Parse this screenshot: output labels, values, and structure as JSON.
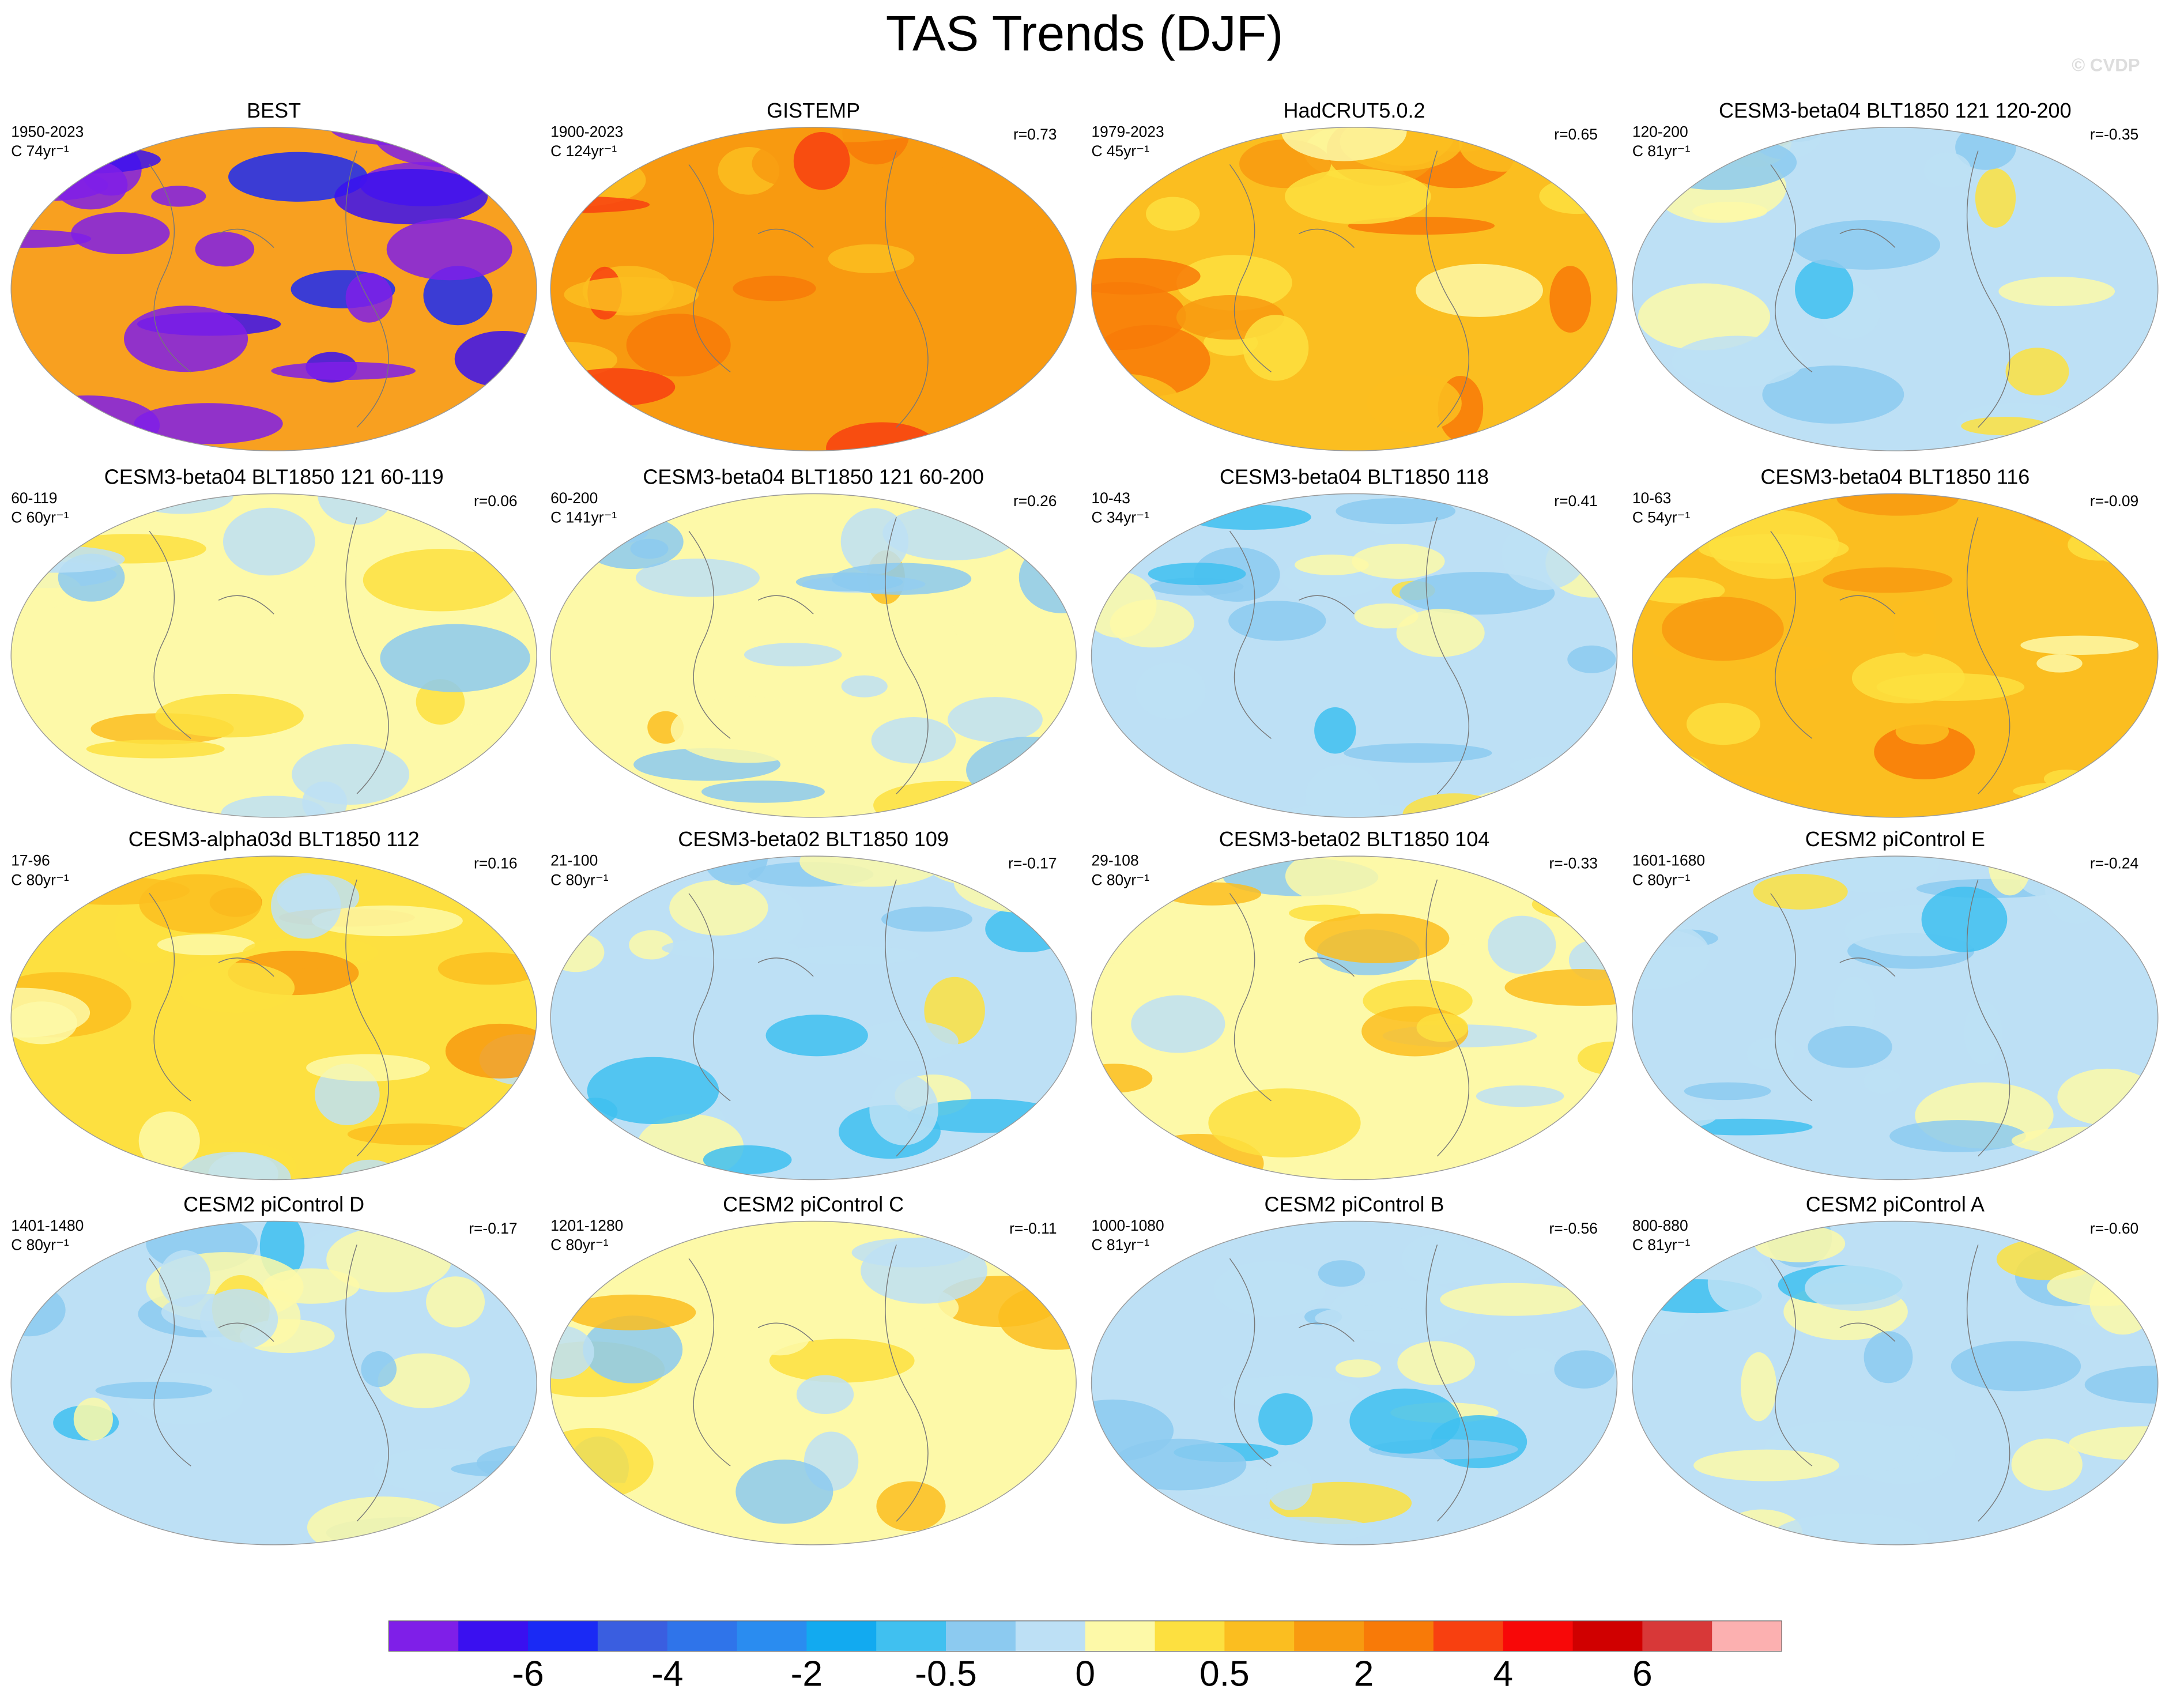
{
  "title": "TAS Trends (DJF)",
  "watermark": "© CVDP",
  "panels": [
    {
      "title": "BEST",
      "period": "1950-2023",
      "length": "C 74yr⁻¹",
      "color": "#f8a020"
    },
    {
      "title": "GISTEMP",
      "period": "1900-2023",
      "length": "C 124yr⁻¹",
      "r": "r=0.73",
      "color": "#f89a10"
    },
    {
      "title": "HadCRUT5.0.2",
      "period": "1979-2023",
      "length": "C 45yr⁻¹",
      "r": "r=0.65",
      "color": "#fbbe20"
    },
    {
      "title": "CESM3-beta04 BLT1850 121 120-200",
      "period": "120-200",
      "length": "C 81yr⁻¹",
      "r": "r=-0.35",
      "color": "#bde0f5"
    },
    {
      "title": "CESM3-beta04 BLT1850 121 60-119",
      "period": "60-119",
      "length": "C 60yr⁻¹",
      "r": "r=0.06",
      "color": "#fdf9a8"
    },
    {
      "title": "CESM3-beta04 BLT1850 121 60-200",
      "period": "60-200",
      "length": "C 141yr⁻¹",
      "r": "r=0.26",
      "color": "#fdf9a8"
    },
    {
      "title": "CESM3-beta04 BLT1850 118",
      "period": "10-43",
      "length": "C 34yr⁻¹",
      "r": "r=0.41",
      "color": "#bde0f5"
    },
    {
      "title": "CESM3-beta04 BLT1850 116",
      "period": "10-63",
      "length": "C 54yr⁻¹",
      "r": "r=-0.09",
      "color": "#fbbe20"
    },
    {
      "title": "CESM3-alpha03d BLT1850 112",
      "period": "17-96",
      "length": "C 80yr⁻¹",
      "r": "r=0.16",
      "color": "#fde040"
    },
    {
      "title": "CESM3-beta02 BLT1850 109",
      "period": "21-100",
      "length": "C 80yr⁻¹",
      "r": "r=-0.17",
      "color": "#bde0f5"
    },
    {
      "title": "CESM3-beta02 BLT1850 104",
      "period": "29-108",
      "length": "C 80yr⁻¹",
      "r": "r=-0.33",
      "color": "#fdf9a8"
    },
    {
      "title": "CESM2 piControl E",
      "period": "1601-1680",
      "length": "C 80yr⁻¹",
      "r": "r=-0.24",
      "color": "#bde0f5"
    },
    {
      "title": "CESM2 piControl D",
      "period": "1401-1480",
      "length": "C 80yr⁻¹",
      "r": "r=-0.17",
      "color": "#bde0f5"
    },
    {
      "title": "CESM2 piControl C",
      "period": "1201-1280",
      "length": "C 80yr⁻¹",
      "r": "r=-0.11",
      "color": "#fdf9a8"
    },
    {
      "title": "CESM2 piControl B",
      "period": "1000-1080",
      "length": "C 81yr⁻¹",
      "r": "r=-0.56",
      "color": "#bde0f5"
    },
    {
      "title": "CESM2 piControl A",
      "period": "800-880",
      "length": "C 81yr⁻¹",
      "r": "r=-0.60",
      "color": "#bde0f5"
    }
  ],
  "colorbar": {
    "colors": [
      "#7f1fe8",
      "#3a10f0",
      "#1a2af5",
      "#3a5ee0",
      "#2f74ea",
      "#2a8cf0",
      "#12aaf0",
      "#40c0f0",
      "#8ccaf0",
      "#bde0f5",
      "#fdf9a8",
      "#fde040",
      "#fbbe20",
      "#f89a10",
      "#f87a08",
      "#f84010",
      "#f80808",
      "#d00000",
      "#d83838",
      "#fcb0b0"
    ],
    "labels": [
      -6,
      -4,
      -2,
      -0.5,
      0,
      0.5,
      2,
      4,
      6
    ]
  }
}
